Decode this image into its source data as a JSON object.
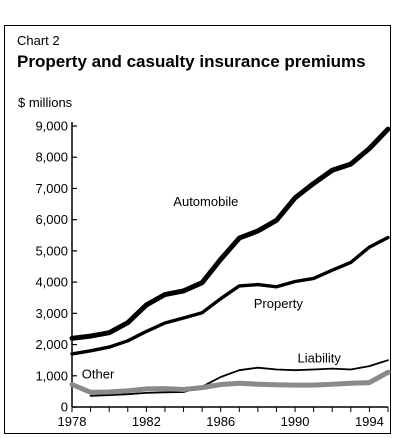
{
  "header": {
    "chart_label": "Chart 2",
    "title": "Property and casualty insurance premiums"
  },
  "chart_data": {
    "type": "line",
    "title": "Property and casualty insurance premiums",
    "ylabel": "$ millions",
    "xlabel": "",
    "xlim": [
      1978,
      1995
    ],
    "ylim": [
      0,
      9000
    ],
    "x_ticks": [
      1978,
      1982,
      1986,
      1990,
      1994
    ],
    "y_ticks": [
      0,
      1000,
      2000,
      3000,
      4000,
      5000,
      6000,
      7000,
      8000,
      9000
    ],
    "y_tick_labels": [
      "0",
      "1,000",
      "2,000",
      "3,000",
      "4,000",
      "5,000",
      "6,000",
      "7,000",
      "8,000",
      "9,000"
    ],
    "x": [
      1978,
      1979,
      1980,
      1981,
      1982,
      1983,
      1984,
      1985,
      1986,
      1987,
      1988,
      1989,
      1990,
      1991,
      1992,
      1993,
      1994,
      1995
    ],
    "series": [
      {
        "name": "Automobile",
        "color": "#000000",
        "weight": "heavy",
        "values": [
          2200,
          2270,
          2380,
          2700,
          3270,
          3600,
          3720,
          3980,
          4730,
          5410,
          5640,
          5980,
          6700,
          7160,
          7580,
          7780,
          8280,
          8900
        ]
      },
      {
        "name": "Property",
        "color": "#000000",
        "weight": "medium",
        "values": [
          1700,
          1800,
          1920,
          2120,
          2420,
          2690,
          2850,
          3020,
          3470,
          3880,
          3920,
          3850,
          4020,
          4120,
          4380,
          4630,
          5120,
          5430
        ]
      },
      {
        "name": "Liability",
        "color": "#000000",
        "weight": "thin",
        "values": [
          null,
          360,
          380,
          410,
          450,
          470,
          480,
          650,
          960,
          1180,
          1260,
          1200,
          1180,
          1200,
          1230,
          1200,
          1310,
          1500
        ]
      },
      {
        "name": "Other",
        "color": "#8a8a8a",
        "weight": "heavy",
        "values": [
          720,
          470,
          480,
          520,
          580,
          590,
          560,
          620,
          720,
          760,
          730,
          710,
          700,
          700,
          730,
          760,
          780,
          1110
        ]
      }
    ]
  }
}
